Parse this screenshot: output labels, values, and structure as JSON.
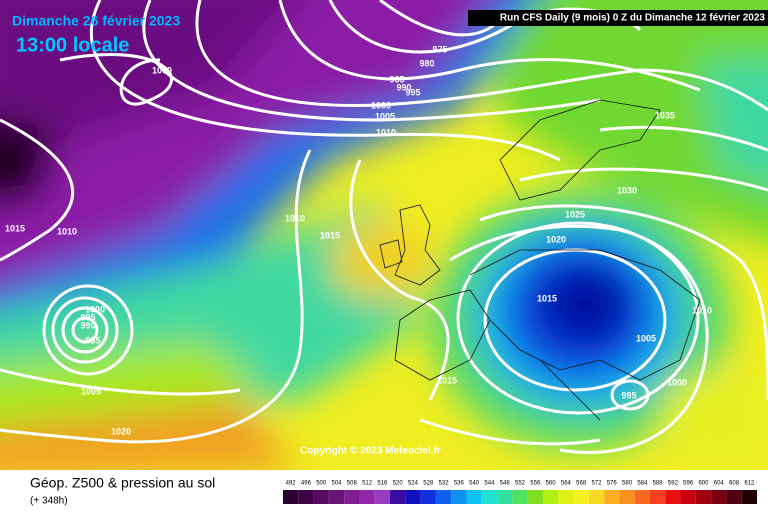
{
  "header": {
    "date": "Dimanche 26 février 2023",
    "time": "13:00 locale",
    "run": "Run CFS Daily (9 mois) 0 Z du Dimanche 12 février 2023"
  },
  "isobar_labels": [
    "975",
    "980",
    "985",
    "990",
    "995",
    "1000",
    "1005",
    "1010",
    "1000",
    "1035",
    "1030",
    "1025",
    "1020",
    "1010",
    "1015",
    "1015",
    "1010",
    "1000",
    "995",
    "990",
    "985",
    "1015",
    "1010",
    "1005",
    "1015",
    "1000",
    "995",
    "1005",
    "1020"
  ],
  "copyright": "Copyright © 2023 Meteociel.fr",
  "legend": {
    "title": "Géop. Z500 & pression au sol",
    "subtitle": "(+ 348h)",
    "labels": [
      "492",
      "496",
      "500",
      "504",
      "508",
      "512",
      "516",
      "520",
      "524",
      "528",
      "532",
      "536",
      "540",
      "544",
      "548",
      "552",
      "556",
      "560",
      "564",
      "568",
      "572",
      "576",
      "580",
      "584",
      "588",
      "592",
      "596",
      "600",
      "604",
      "608",
      "612"
    ],
    "colors": [
      "#2a0030",
      "#400048",
      "#560a60",
      "#6a1478",
      "#7e1e90",
      "#9228a8",
      "#9a3cc0",
      "#3c0ca0",
      "#1010c0",
      "#1030e0",
      "#1060f0",
      "#1090f0",
      "#10c0f0",
      "#20e0d0",
      "#30e0a0",
      "#50e060",
      "#80e020",
      "#b0f010",
      "#e0f010",
      "#f8f020",
      "#f8d820",
      "#f8b020",
      "#f89020",
      "#f86820",
      "#f84020",
      "#e81010",
      "#c80010",
      "#a00010",
      "#780010",
      "#500010",
      "#200000"
    ]
  }
}
